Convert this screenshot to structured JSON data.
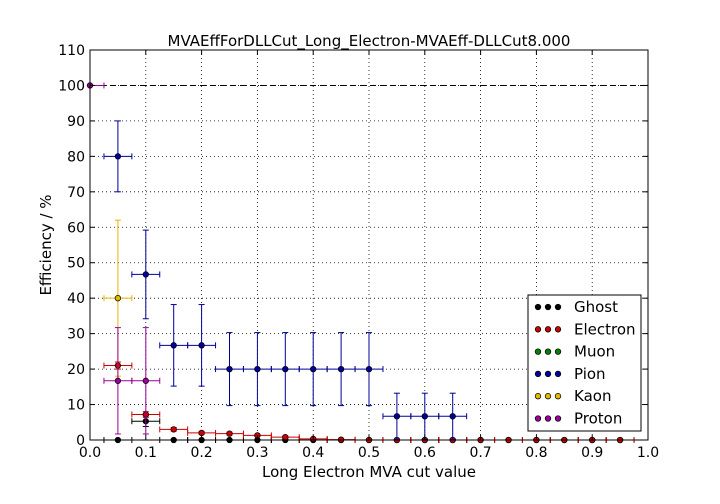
{
  "chart_data": {
    "type": "scatter",
    "title": "MVAEffForDLLCut_Long_Electron-MVAEff-DLLCut8.000",
    "xlabel": "Long Electron MVA cut value",
    "ylabel": "Efficiency / %",
    "xlim": [
      0.0,
      1.0
    ],
    "ylim": [
      0,
      110
    ],
    "x_ticks": [
      "0.0",
      "0.1",
      "0.2",
      "0.3",
      "0.4",
      "0.5",
      "0.6",
      "0.7",
      "0.8",
      "0.9",
      "1.0"
    ],
    "y_ticks": [
      "0",
      "10",
      "20",
      "30",
      "40",
      "50",
      "60",
      "70",
      "80",
      "90",
      "100",
      "110"
    ],
    "grid": true,
    "reference_line": 100,
    "legend_position": "lower-right",
    "x_error": 0.025,
    "series": [
      {
        "name": "Ghost",
        "color": "#000000",
        "points": [
          {
            "x": 0.05,
            "y": 0.0,
            "err": 0.0
          },
          {
            "x": 0.1,
            "y": 5.3,
            "err": 1.5
          },
          {
            "x": 0.15,
            "y": 0.0,
            "err": 0.0
          },
          {
            "x": 0.2,
            "y": 0.0,
            "err": 0.0
          },
          {
            "x": 0.25,
            "y": 0.0,
            "err": 0.0
          },
          {
            "x": 0.3,
            "y": 0.0,
            "err": 0.0
          },
          {
            "x": 0.35,
            "y": 0.0,
            "err": 0.0
          },
          {
            "x": 0.4,
            "y": 0.0,
            "err": 0.0
          },
          {
            "x": 0.45,
            "y": 0.0,
            "err": 0.0
          },
          {
            "x": 0.5,
            "y": 0.0,
            "err": 0.0
          },
          {
            "x": 0.55,
            "y": 0.0,
            "err": 0.0
          },
          {
            "x": 0.6,
            "y": 0.0,
            "err": 0.0
          },
          {
            "x": 0.65,
            "y": 0.0,
            "err": 0.0
          },
          {
            "x": 0.7,
            "y": 0.0,
            "err": 0.0
          },
          {
            "x": 0.75,
            "y": 0.0,
            "err": 0.0
          },
          {
            "x": 0.8,
            "y": 0.0,
            "err": 0.0
          },
          {
            "x": 0.85,
            "y": 0.0,
            "err": 0.0
          },
          {
            "x": 0.9,
            "y": 0.0,
            "err": 0.0
          },
          {
            "x": 0.95,
            "y": 0.0,
            "err": 0.0
          }
        ]
      },
      {
        "name": "Electron",
        "color": "#cc0000",
        "points": [
          {
            "x": 0.05,
            "y": 21.0,
            "err": 1.0
          },
          {
            "x": 0.1,
            "y": 7.2,
            "err": 0.8
          },
          {
            "x": 0.15,
            "y": 3.0,
            "err": 0.5
          },
          {
            "x": 0.2,
            "y": 2.0,
            "err": 0.4
          },
          {
            "x": 0.25,
            "y": 1.8,
            "err": 0.4
          },
          {
            "x": 0.3,
            "y": 1.3,
            "err": 0.3
          },
          {
            "x": 0.35,
            "y": 0.8,
            "err": 0.3
          },
          {
            "x": 0.4,
            "y": 0.3,
            "err": 0.2
          },
          {
            "x": 0.45,
            "y": 0.1,
            "err": 0.1
          },
          {
            "x": 0.5,
            "y": 0.0,
            "err": 0.0
          },
          {
            "x": 0.55,
            "y": 0.0,
            "err": 0.0
          },
          {
            "x": 0.6,
            "y": 0.0,
            "err": 0.0
          },
          {
            "x": 0.65,
            "y": 0.0,
            "err": 0.0
          },
          {
            "x": 0.7,
            "y": 0.0,
            "err": 0.0
          },
          {
            "x": 0.75,
            "y": 0.0,
            "err": 0.0
          },
          {
            "x": 0.8,
            "y": 0.0,
            "err": 0.0
          },
          {
            "x": 0.85,
            "y": 0.0,
            "err": 0.0
          },
          {
            "x": 0.9,
            "y": 0.0,
            "err": 0.0
          },
          {
            "x": 0.95,
            "y": 0.0,
            "err": 0.0
          }
        ]
      },
      {
        "name": "Muon",
        "color": "#008000",
        "points": []
      },
      {
        "name": "Pion",
        "color": "#000099",
        "points": [
          {
            "x": 0.05,
            "y": 80.0,
            "err": 10.0
          },
          {
            "x": 0.1,
            "y": 46.7,
            "err": 12.5
          },
          {
            "x": 0.15,
            "y": 26.7,
            "err": 11.5
          },
          {
            "x": 0.2,
            "y": 26.7,
            "err": 11.5
          },
          {
            "x": 0.25,
            "y": 20.0,
            "err": 10.3
          },
          {
            "x": 0.3,
            "y": 20.0,
            "err": 10.3
          },
          {
            "x": 0.35,
            "y": 20.0,
            "err": 10.3
          },
          {
            "x": 0.4,
            "y": 20.0,
            "err": 10.3
          },
          {
            "x": 0.45,
            "y": 20.0,
            "err": 10.3
          },
          {
            "x": 0.5,
            "y": 20.0,
            "err": 10.3
          },
          {
            "x": 0.55,
            "y": 6.7,
            "err": 6.5
          },
          {
            "x": 0.6,
            "y": 6.7,
            "err": 6.5
          },
          {
            "x": 0.65,
            "y": 6.7,
            "err": 6.5
          }
        ]
      },
      {
        "name": "Kaon",
        "color": "#e6b800",
        "points": [
          {
            "x": 0.05,
            "y": 40.0,
            "err": 22.0
          }
        ]
      },
      {
        "name": "Proton",
        "color": "#990099",
        "points": [
          {
            "x": 0.0,
            "y": 100.0,
            "err": 0.0
          },
          {
            "x": 0.05,
            "y": 16.7,
            "err": 15.0
          },
          {
            "x": 0.1,
            "y": 16.7,
            "err": 15.0
          }
        ]
      }
    ]
  }
}
